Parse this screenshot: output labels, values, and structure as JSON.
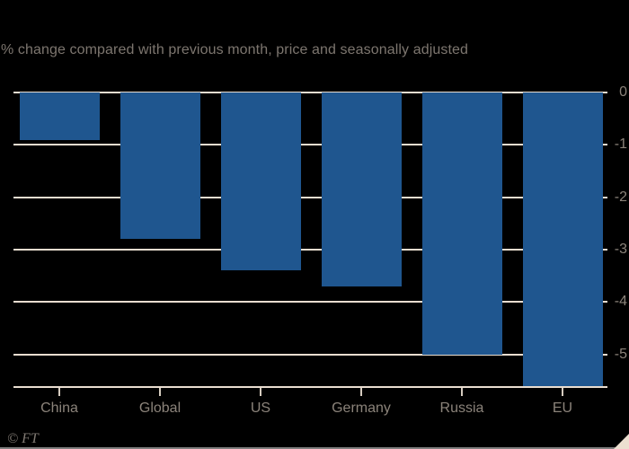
{
  "page": {
    "background": "#000000",
    "footer": {
      "credit": "© FT"
    }
  },
  "chart_data": {
    "type": "bar",
    "title": "",
    "subtitle": "% change compared with previous month, price and seasonally adjusted",
    "xlabel": "",
    "ylabel": "",
    "categories": [
      "China",
      "Global",
      "US",
      "Germany",
      "Russia",
      "EU"
    ],
    "values": [
      -0.9,
      -2.8,
      -3.4,
      -3.7,
      -5.0,
      -5.6
    ],
    "yticks": [
      0,
      -1,
      -2,
      -3,
      -4,
      -5
    ],
    "ytick_labels": [
      "0",
      "-1",
      "-2",
      "-3",
      "-4",
      "-5"
    ],
    "ylim": [
      -5.62,
      0
    ],
    "grid": true,
    "legend": false,
    "axis_side": "right",
    "colors": {
      "bar": "#1f568f",
      "gridline": "#e9ddd0",
      "axis_line": "#e9ddd0",
      "tick": "#d6ccc0",
      "tick_label": "#8b837a",
      "subtitle": "#7d766f",
      "credit": "#807a73",
      "resize_triangle": "#ecdfd0",
      "background": "#000000"
    }
  }
}
